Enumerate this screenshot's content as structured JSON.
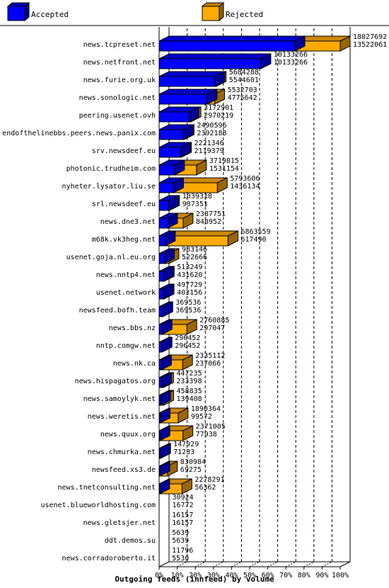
{
  "chart_data": {
    "type": "bar",
    "orientation": "horizontal",
    "stacking": "overlaid-3d",
    "title": "Outgoing feeds (innfeed) by volume",
    "xlim": [
      0,
      100
    ],
    "x_ticks": [
      "0%",
      "10%",
      "20%",
      "30%",
      "40%",
      "50%",
      "60%",
      "70%",
      "80%",
      "90%",
      "100%"
    ],
    "grid": true,
    "legend_position": "top",
    "series": [
      {
        "name": "Accepted",
        "color": "#0000ff"
      },
      {
        "name": "Rejected",
        "color": "#ffaa00"
      }
    ],
    "categories": [
      "news.tcpreset.net",
      "news.netfront.net",
      "news.furie.org.uk",
      "news.sonologic.net",
      "peering.usenet.ovh",
      "endofthelinebbs.peers.news.panix.com",
      "srv.newsdeef.eu",
      "photonic.trudheim.com",
      "nyheter.lysator.liu.se",
      "srl.newsdeef.eu",
      "news.dne3.net",
      "m68k.vk3heg.net",
      "usenet.goja.nl.eu.org",
      "news.nntp4.net",
      "usenet.network",
      "newsfeed.bofh.team",
      "news.bbs.nz",
      "nntp.comgw.net",
      "news.nk.ca",
      "news.hispagatos.org",
      "news.samoylyk.net",
      "news.weretis.net",
      "news.quux.org",
      "news.chmurka.net",
      "newsfeed.xs3.de",
      "news.tnetconsulting.net",
      "usenet.blueworldhosting.com",
      "news.gletsjer.net",
      "ddt.demos.su",
      "news.corradoroberto.it"
    ],
    "offered": [
      "18027692",
      "10133266",
      "5684288",
      "5532703",
      "3172901",
      "2490596",
      "2221346",
      "3719815",
      "5793606",
      "1039318",
      "2387751",
      "6863559",
      "983146",
      "513249",
      "497729",
      "369536",
      "2760885",
      "296452",
      "2335112",
      "447235",
      "458835",
      "1890364",
      "2371005",
      "147929",
      "830984",
      "2278291",
      "30924",
      "16157",
      "5639",
      "11796"
    ],
    "accepted": [
      "13522061",
      "10133266",
      "5544601",
      "4775642",
      "2970219",
      "2392188",
      "2119379",
      "1531154",
      "1436134",
      "937351",
      "848952",
      "617490",
      "522666",
      "431620",
      "403156",
      "369536",
      "297047",
      "296452",
      "237066",
      "233398",
      "139408",
      "99572",
      "77938",
      "71233",
      "69275",
      "56362",
      "16772",
      "16157",
      "5639",
      "5530"
    ]
  }
}
